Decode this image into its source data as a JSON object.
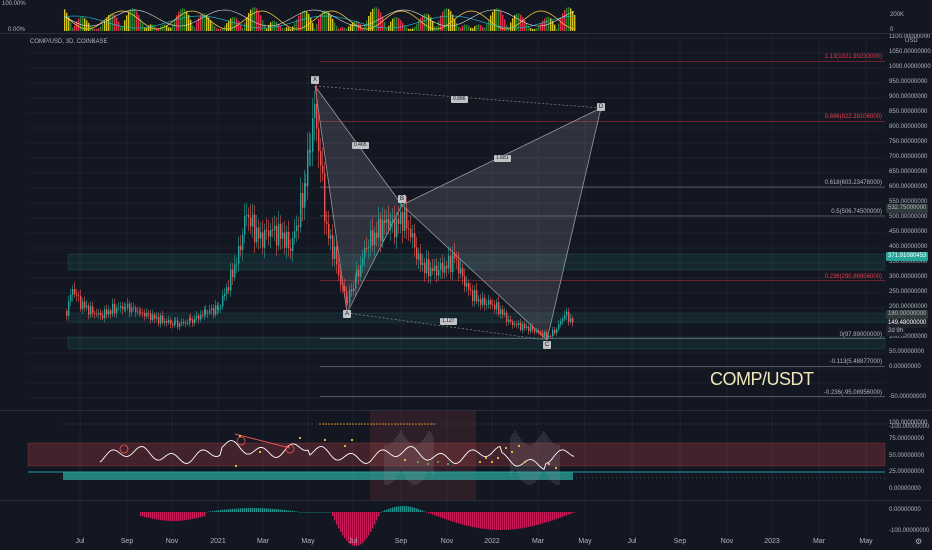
{
  "header": {
    "symbol": "COMP/USD, 3D, COINBASE",
    "watermark": "COMP/USDT",
    "currency": "USD"
  },
  "top_panel": {
    "left_top": "100.00%",
    "left_bottom": "0.00%",
    "right_top": "200K",
    "right_bottom": "0"
  },
  "price_axis": [
    "1100.00000000",
    "1000.00000000",
    "900.00000000",
    "800.00000000",
    "700.00000000",
    "600.00000000",
    "500.00000000",
    "400.00000000",
    "300.00000000",
    "200.00000000",
    "100.00000000",
    "0.00000000",
    "-50.00000000",
    "-100.00000000"
  ],
  "price_axis_mid": [
    "1050.00000000",
    "950.00000000",
    "850.00000000",
    "750.00000000",
    "650.00000000",
    "550.00000000",
    "450.00000000",
    "350.00000000",
    "250.00000000",
    "150.00000000",
    "50.00000000"
  ],
  "fib_levels": [
    {
      "label": "1.13(1021.90230000)",
      "color": "#f23645"
    },
    {
      "label": "0.886(822.38106000)",
      "color": "#f23645"
    },
    {
      "label": "0.618(603.23478000)",
      "color": "#b2b5be"
    },
    {
      "label": "0.5(506.74500000)",
      "color": "#b2b5be"
    },
    {
      "label": "0.236(290.86956000)",
      "color": "#f23645"
    },
    {
      "label": "0(97.89000000)",
      "color": "#b2b5be"
    },
    {
      "label": "-0.113(5.48877000)",
      "color": "#b2b5be"
    },
    {
      "label": "-0.236(-95.08956000)",
      "color": "#b2b5be"
    }
  ],
  "price_badges": [
    {
      "text": "532.75000000",
      "bg": "#2f3a3a",
      "fg": "#b2b5be"
    },
    {
      "text": "371.91080453",
      "bg": "#26a69a",
      "fg": "#ffffff"
    },
    {
      "text": "180.00000000",
      "bg": "#2f3a3a",
      "fg": "#b2b5be"
    },
    {
      "text": "149.48000000",
      "bg": "#1e222d",
      "fg": "#ffffff"
    },
    {
      "text": "2d 9h",
      "bg": "#1e222d",
      "fg": "#b2b5be"
    }
  ],
  "pattern_points": [
    "X",
    "A",
    "B",
    "C",
    "D"
  ],
  "pattern_ratios": [
    "0.886",
    "0.465",
    "1.681",
    "1.127"
  ],
  "osc_axis": [
    "100.00000000",
    "75.00000000",
    "50.00000000",
    "25.00000000",
    "0.00000000"
  ],
  "macd_axis": [
    "0.00000000",
    "-100.00000000"
  ],
  "time_axis": [
    "Jul",
    "Sep",
    "Nov",
    "2021",
    "Mar",
    "May",
    "Jul",
    "Sep",
    "Nov",
    "2022",
    "Mar",
    "May",
    "Jul",
    "Sep",
    "Nov",
    "2023",
    "Mar",
    "May"
  ],
  "colors": {
    "bg": "#131722",
    "up": "#26a69a",
    "down": "#ef5350",
    "grid": "#1e222d",
    "fib_red": "#f23645"
  }
}
